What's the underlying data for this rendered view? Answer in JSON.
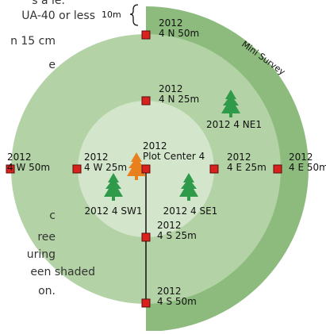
{
  "text_fragments": [
    "s a le.",
    "UA-40 or less",
    "n 15 cm",
    "e",
    "c",
    "ree",
    "uring",
    "een shaded",
    "on."
  ],
  "scale_label": "10m",
  "ring_label": "Mini Survey",
  "points": [
    {
      "year": "2012",
      "name": "4 N 50m"
    },
    {
      "year": "2012",
      "name": "4 N 25m"
    },
    {
      "year": "2012",
      "name": "Plot Center 4"
    },
    {
      "year": "2012",
      "name": "4 W 25m"
    },
    {
      "year": "2012",
      "name": "4 W 50m"
    },
    {
      "year": "2012",
      "name": "4 E 25m"
    },
    {
      "year": "2012",
      "name": "4 E 50m"
    },
    {
      "year": "2012",
      "name": "4 S 25m"
    },
    {
      "year": "2012",
      "name": "4 S 50m"
    }
  ],
  "trees": [
    "2012 4 NE1",
    "2012 4 SW1",
    "2012 4 SE1"
  ]
}
